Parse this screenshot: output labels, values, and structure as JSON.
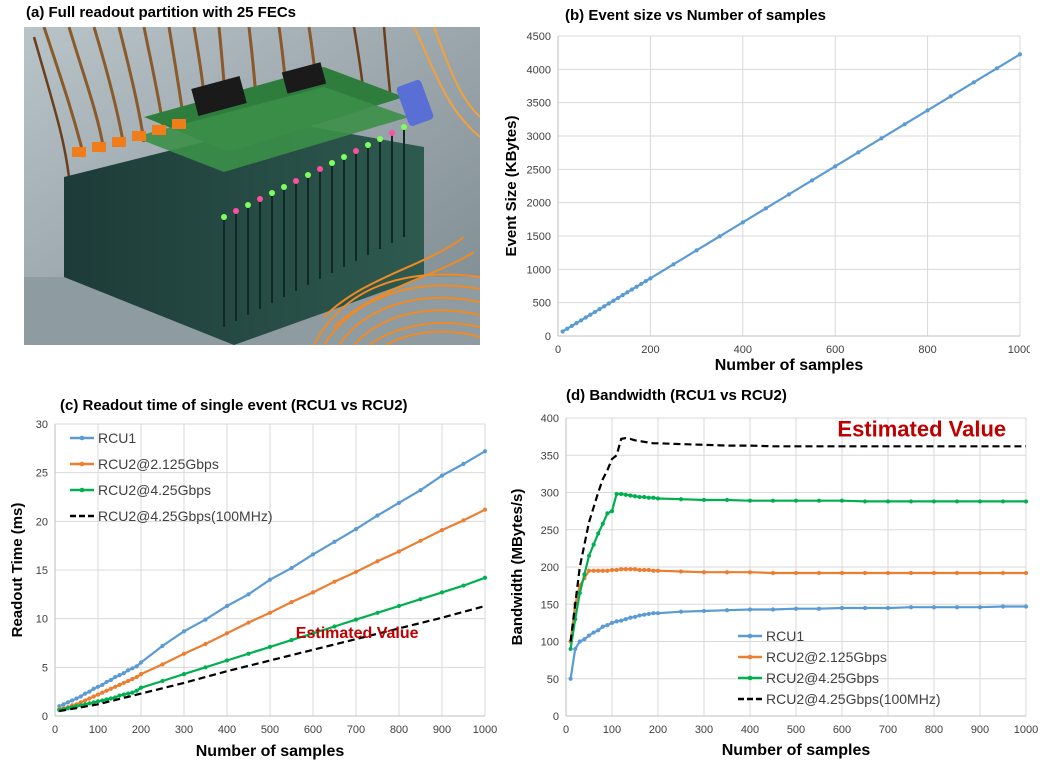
{
  "panels": {
    "a": {
      "title": "(a) Full readout partition with 25 FECs"
    },
    "b": {
      "title": "(b) Event size vs Number of samples"
    },
    "c": {
      "title": "(c) Readout time of single event (RCU1 vs RCU2)"
    },
    "d": {
      "title": "(d) Bandwidth (RCU1 vs RCU2)"
    }
  },
  "photo": {
    "icon": "fec-crate-photo"
  },
  "colors": {
    "rcu1": "#5b9bd5",
    "rcu2_2125": "#ed7d31",
    "rcu2_425": "#00b050",
    "rcu2_425_100": "#000000",
    "annotation": "#c00000",
    "grid": "#d9d9d9"
  },
  "chart_data": [
    {
      "id": "b",
      "type": "line",
      "title": "(b) Event size vs Number of samples",
      "xlabel": "Number of samples",
      "ylabel": "Event Size (KBytes)",
      "xlim": [
        0,
        1000
      ],
      "ylim": [
        0,
        4500
      ],
      "xticks": [
        0,
        200,
        400,
        600,
        800,
        1000
      ],
      "yticks": [
        0,
        500,
        1000,
        1500,
        2000,
        2500,
        3000,
        3500,
        4000,
        4500
      ],
      "grid": true,
      "series": [
        {
          "color": "#5b9bd5",
          "dash": false,
          "markers": true,
          "x": [
            10,
            20,
            30,
            40,
            50,
            60,
            70,
            80,
            90,
            100,
            110,
            120,
            130,
            140,
            150,
            160,
            170,
            180,
            190,
            200,
            250,
            300,
            350,
            400,
            450,
            500,
            550,
            600,
            650,
            700,
            750,
            800,
            850,
            900,
            950,
            1000
          ],
          "y": [
            67,
            109,
            151,
            193,
            235,
            277,
            319,
            361,
            403,
            445,
            487,
            529,
            571,
            613,
            655,
            697,
            739,
            781,
            823,
            865,
            1075,
            1285,
            1495,
            1705,
            1915,
            2125,
            2335,
            2545,
            2755,
            2965,
            3175,
            3385,
            3595,
            3805,
            4015,
            4225
          ]
        }
      ]
    },
    {
      "id": "c",
      "type": "line",
      "title": "(c) Readout time of single event (RCU1 vs RCU2)",
      "xlabel": "Number of samples",
      "ylabel": "Readout Time (ms)",
      "xlim": [
        0,
        1000
      ],
      "ylim": [
        0,
        30
      ],
      "xticks": [
        0,
        100,
        200,
        300,
        400,
        500,
        600,
        700,
        800,
        900,
        1000
      ],
      "yticks": [
        0,
        5,
        10,
        15,
        20,
        25,
        30
      ],
      "grid": true,
      "legend": "top-left",
      "annotation": {
        "text": "Estimated Value",
        "x": 560,
        "y": 8
      },
      "series": [
        {
          "name": "RCU1",
          "color": "#5b9bd5",
          "dash": false,
          "markers": true,
          "x": [
            10,
            20,
            30,
            40,
            50,
            60,
            70,
            80,
            90,
            100,
            110,
            120,
            130,
            140,
            150,
            160,
            170,
            180,
            190,
            200,
            250,
            300,
            350,
            400,
            450,
            500,
            550,
            600,
            650,
            700,
            750,
            800,
            850,
            900,
            950,
            1000
          ],
          "y": [
            1.0,
            1.2,
            1.4,
            1.6,
            1.8,
            2.0,
            2.3,
            2.5,
            2.8,
            3.0,
            3.2,
            3.5,
            3.7,
            4.0,
            4.2,
            4.4,
            4.7,
            4.9,
            5.1,
            5.5,
            7.2,
            8.7,
            9.9,
            11.3,
            12.5,
            14.0,
            15.2,
            16.6,
            17.9,
            19.2,
            20.6,
            21.9,
            23.2,
            24.7,
            25.9,
            27.2
          ]
        },
        {
          "name": "RCU2@2.125Gbps",
          "color": "#ed7d31",
          "dash": false,
          "markers": true,
          "x": [
            10,
            20,
            30,
            40,
            50,
            60,
            70,
            80,
            90,
            100,
            110,
            120,
            130,
            140,
            150,
            160,
            170,
            180,
            190,
            200,
            250,
            300,
            350,
            400,
            450,
            500,
            550,
            600,
            650,
            700,
            750,
            800,
            850,
            900,
            950,
            1000
          ],
          "y": [
            0.7,
            0.8,
            0.9,
            1.1,
            1.2,
            1.4,
            1.6,
            1.8,
            2.0,
            2.2,
            2.4,
            2.6,
            2.8,
            3.0,
            3.2,
            3.4,
            3.6,
            3.8,
            4.0,
            4.3,
            5.3,
            6.4,
            7.4,
            8.5,
            9.6,
            10.6,
            11.7,
            12.7,
            13.8,
            14.8,
            15.9,
            16.9,
            18.0,
            19.1,
            20.1,
            21.2
          ]
        },
        {
          "name": "RCU2@4.25Gbps",
          "color": "#00b050",
          "dash": false,
          "markers": true,
          "x": [
            10,
            20,
            30,
            40,
            50,
            60,
            70,
            80,
            90,
            100,
            110,
            120,
            130,
            140,
            150,
            160,
            170,
            180,
            190,
            200,
            250,
            300,
            350,
            400,
            450,
            500,
            550,
            600,
            650,
            700,
            750,
            800,
            850,
            900,
            950,
            1000
          ],
          "y": [
            0.6,
            0.7,
            0.8,
            0.9,
            1.0,
            1.1,
            1.2,
            1.3,
            1.4,
            1.5,
            1.6,
            1.7,
            1.8,
            1.9,
            2.1,
            2.2,
            2.3,
            2.4,
            2.6,
            2.9,
            3.6,
            4.3,
            5.0,
            5.7,
            6.4,
            7.1,
            7.8,
            8.5,
            9.2,
            9.9,
            10.6,
            11.3,
            12.0,
            12.7,
            13.4,
            14.2
          ]
        },
        {
          "name": "RCU2@4.25Gbps(100MHz)",
          "color": "#000000",
          "dash": true,
          "markers": false,
          "x": [
            10,
            100,
            200,
            300,
            400,
            500,
            600,
            700,
            800,
            900,
            1000
          ],
          "y": [
            0.5,
            1.2,
            2.3,
            3.4,
            4.6,
            5.7,
            6.8,
            7.9,
            9.0,
            10.1,
            11.3
          ]
        }
      ]
    },
    {
      "id": "d",
      "type": "line",
      "title": "(d) Bandwidth (RCU1 vs RCU2)",
      "xlabel": "Number of samples",
      "ylabel": "Bandwidth (MBytes/s)",
      "xlim": [
        0,
        1000
      ],
      "ylim": [
        0,
        400
      ],
      "xticks": [
        0,
        100,
        200,
        300,
        400,
        500,
        600,
        700,
        800,
        900,
        1000
      ],
      "yticks": [
        0,
        50,
        100,
        150,
        200,
        250,
        300,
        350,
        400
      ],
      "grid": true,
      "legend": "bottom-center",
      "annotation": {
        "text": "Estimated Value",
        "x": 590,
        "y": 375
      },
      "series": [
        {
          "name": "RCU1",
          "color": "#5b9bd5",
          "dash": false,
          "markers": true,
          "x": [
            10,
            20,
            30,
            40,
            50,
            60,
            70,
            80,
            90,
            100,
            110,
            120,
            130,
            140,
            150,
            160,
            170,
            180,
            190,
            200,
            250,
            300,
            350,
            400,
            450,
            500,
            550,
            600,
            650,
            700,
            750,
            800,
            850,
            900,
            950,
            1000
          ],
          "y": [
            50,
            90,
            100,
            103,
            108,
            112,
            115,
            120,
            122,
            125,
            127,
            128,
            130,
            132,
            133,
            135,
            136,
            137,
            138,
            138,
            140,
            141,
            142,
            143,
            143,
            144,
            144,
            145,
            145,
            145,
            146,
            146,
            146,
            146,
            147,
            147
          ]
        },
        {
          "name": "RCU2@2.125Gbps",
          "color": "#ed7d31",
          "dash": false,
          "markers": true,
          "x": [
            10,
            20,
            30,
            40,
            50,
            60,
            70,
            80,
            90,
            100,
            110,
            120,
            130,
            140,
            150,
            160,
            170,
            180,
            190,
            200,
            250,
            300,
            350,
            400,
            450,
            500,
            550,
            600,
            650,
            700,
            750,
            800,
            850,
            900,
            950,
            1000
          ],
          "y": [
            100,
            150,
            175,
            185,
            195,
            195,
            195,
            195,
            195,
            196,
            196,
            197,
            197,
            197,
            197,
            196,
            196,
            196,
            195,
            195,
            194,
            193,
            193,
            193,
            192,
            192,
            192,
            192,
            192,
            192,
            192,
            192,
            192,
            192,
            192,
            192
          ]
        },
        {
          "name": "RCU2@4.25Gbps",
          "color": "#00b050",
          "dash": false,
          "markers": true,
          "x": [
            10,
            20,
            30,
            40,
            50,
            60,
            70,
            80,
            90,
            100,
            110,
            120,
            130,
            140,
            150,
            160,
            170,
            180,
            190,
            200,
            250,
            300,
            350,
            400,
            450,
            500,
            550,
            600,
            650,
            700,
            750,
            800,
            850,
            900,
            950,
            1000
          ],
          "y": [
            90,
            130,
            165,
            190,
            215,
            230,
            245,
            258,
            272,
            275,
            298,
            298,
            297,
            296,
            295,
            294,
            294,
            293,
            293,
            292,
            291,
            290,
            290,
            289,
            289,
            289,
            289,
            289,
            288,
            288,
            288,
            288,
            288,
            288,
            288,
            288
          ]
        },
        {
          "name": "RCU2@4.25Gbps(100MHz)",
          "color": "#000000",
          "dash": true,
          "markers": false,
          "x": [
            10,
            20,
            30,
            40,
            50,
            60,
            70,
            80,
            90,
            100,
            110,
            120,
            130,
            140,
            150,
            160,
            170,
            180,
            190,
            200,
            250,
            300,
            350,
            400,
            450,
            500,
            550,
            600,
            650,
            700,
            750,
            800,
            850,
            900,
            950,
            1000
          ],
          "y": [
            100,
            150,
            200,
            230,
            260,
            280,
            300,
            318,
            330,
            345,
            350,
            372,
            373,
            372,
            370,
            369,
            368,
            367,
            366,
            366,
            365,
            364,
            363,
            363,
            362,
            362,
            362,
            362,
            362,
            362,
            362,
            362,
            362,
            362,
            362,
            362
          ]
        }
      ]
    }
  ]
}
